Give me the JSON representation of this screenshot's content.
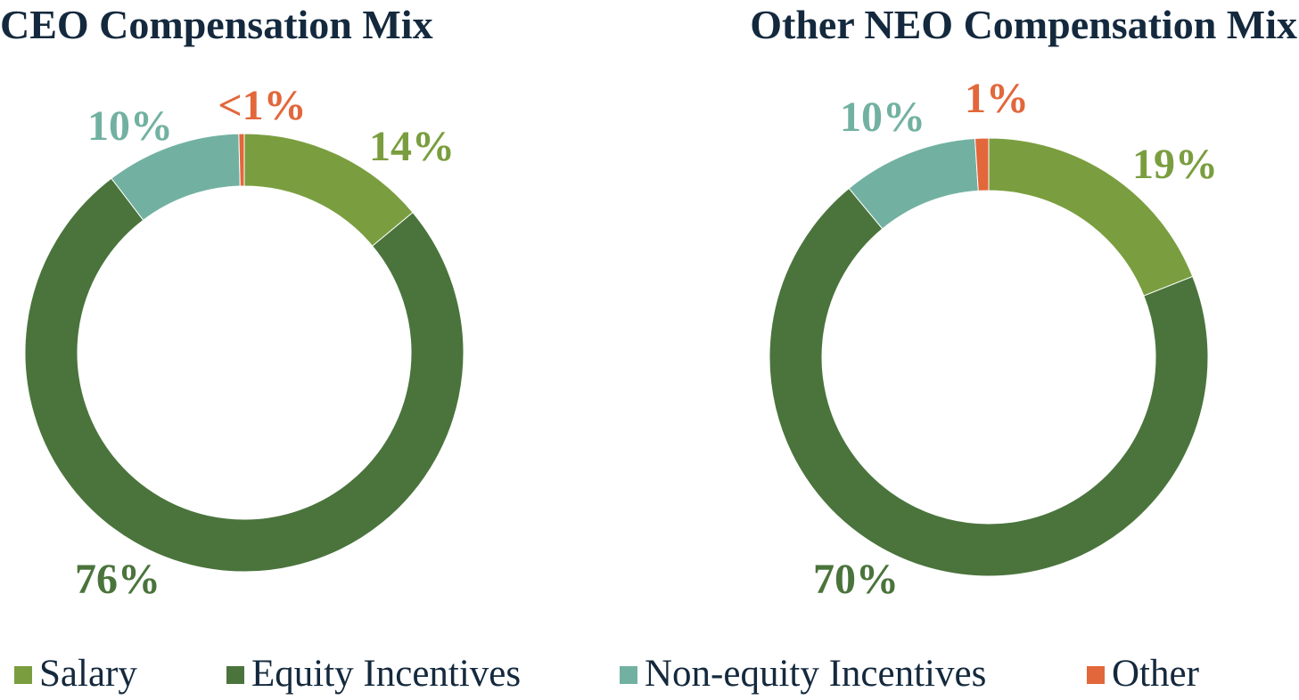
{
  "chart_data": [
    {
      "type": "donut",
      "title": "CEO Compensation Mix",
      "categories": [
        "Salary",
        "Equity Incentives",
        "Non-equity Incentives",
        "Other"
      ],
      "values": [
        14,
        76,
        10,
        0.4
      ],
      "labels": [
        "14%",
        "76%",
        "10%",
        "<1%"
      ],
      "colors": [
        "#7a9e3f",
        "#4a743c",
        "#72b1a1",
        "#e2673b"
      ]
    },
    {
      "type": "donut",
      "title": "Other NEO Compensation Mix",
      "categories": [
        "Salary",
        "Equity Incentives",
        "Non-equity Incentives",
        "Other"
      ],
      "values": [
        19,
        70,
        10,
        1
      ],
      "labels": [
        "19%",
        "70%",
        "10%",
        "1%"
      ],
      "colors": [
        "#7a9e3f",
        "#4a743c",
        "#72b1a1",
        "#e2673b"
      ]
    }
  ],
  "legend": {
    "items": [
      {
        "label": "Salary",
        "color": "#7a9e3f"
      },
      {
        "label": "Equity Incentives",
        "color": "#4a743c"
      },
      {
        "label": "Non-equity Incentives",
        "color": "#72b1a1"
      },
      {
        "label": "Other",
        "color": "#e2673b"
      }
    ]
  },
  "theme": {
    "title_color": "#14293d"
  }
}
